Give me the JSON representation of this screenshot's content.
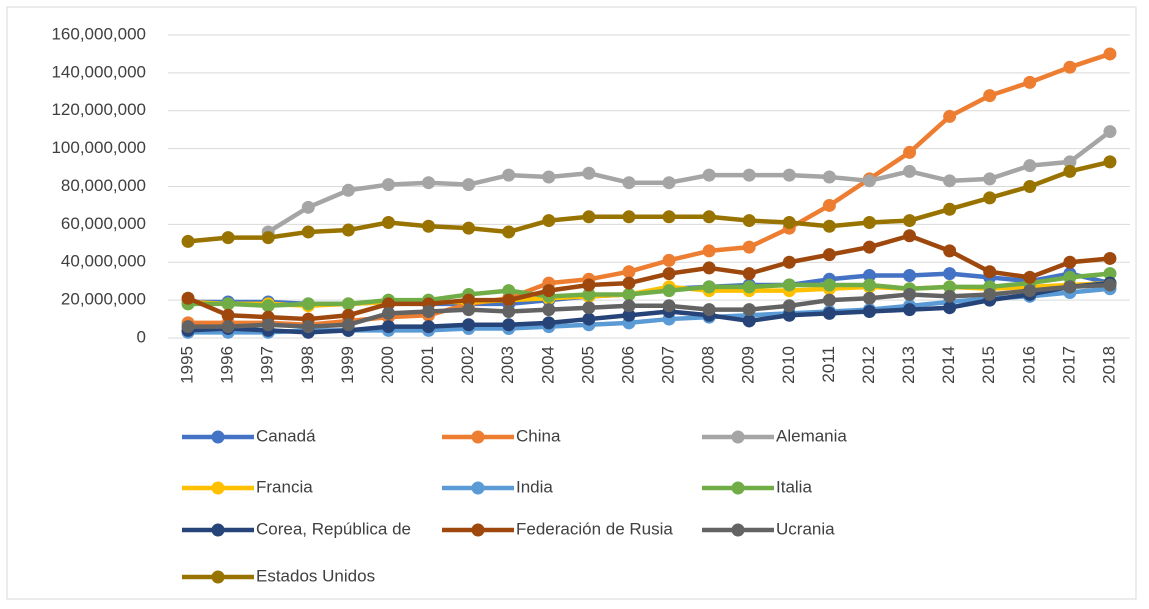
{
  "chart_data": {
    "type": "line",
    "categories": [
      "1995",
      "1996",
      "1997",
      "1998",
      "1999",
      "2000",
      "2001",
      "2002",
      "2003",
      "2004",
      "2005",
      "2006",
      "2007",
      "2008",
      "2009",
      "2010",
      "2011",
      "2012",
      "2013",
      "2014",
      "2015",
      "2016",
      "2017",
      "2018"
    ],
    "ylim": [
      0,
      160000000
    ],
    "yticks": [
      0,
      {
        "value": 20000000,
        "label": "20,000,000"
      },
      {
        "value": 40000000,
        "label": "40,000,000"
      },
      {
        "value": 60000000,
        "label": "60,000,000"
      },
      {
        "value": 80000000,
        "label": "80,000,000"
      },
      {
        "value": 100000000,
        "label": "100,000,000"
      },
      {
        "value": 120000000,
        "label": "120,000,000"
      },
      {
        "value": 140000000,
        "label": "140,000,000"
      },
      {
        "value": 160000000,
        "label": "160,000,000"
      }
    ],
    "grid": true,
    "legend": "bottom",
    "series": [
      {
        "name": "Canadá",
        "color": "#4472c4",
        "values": [
          19000000,
          19000000,
          19000000,
          18000000,
          18000000,
          19000000,
          18000000,
          18000000,
          18000000,
          20000000,
          22000000,
          23000000,
          26000000,
          27000000,
          28000000,
          28000000,
          31000000,
          33000000,
          33000000,
          34000000,
          32000000,
          30000000,
          34000000,
          29000000
        ]
      },
      {
        "name": "China",
        "color": "#ed7d31",
        "values": [
          8000000,
          8000000,
          8000000,
          7000000,
          9000000,
          11000000,
          12000000,
          18000000,
          21000000,
          29000000,
          31000000,
          35000000,
          41000000,
          46000000,
          48000000,
          58000000,
          70000000,
          84000000,
          98000000,
          117000000,
          128000000,
          135000000,
          143000000,
          150000000
        ]
      },
      {
        "name": "Alemania",
        "color": "#a5a5a5",
        "values": [
          null,
          null,
          56000000,
          69000000,
          78000000,
          81000000,
          82000000,
          81000000,
          86000000,
          85000000,
          87000000,
          82000000,
          82000000,
          86000000,
          86000000,
          86000000,
          85000000,
          83000000,
          88000000,
          83000000,
          84000000,
          91000000,
          93000000,
          109000000
        ]
      },
      {
        "name": "Francia",
        "color": "#ffc000",
        "values": [
          19000000,
          18000000,
          18000000,
          17000000,
          18000000,
          19000000,
          19000000,
          19000000,
          20000000,
          21000000,
          22000000,
          23000000,
          27000000,
          25000000,
          25000000,
          25000000,
          26000000,
          27000000,
          26000000,
          27000000,
          26000000,
          27000000,
          28000000,
          29000000
        ]
      },
      {
        "name": "India",
        "color": "#5b9bd5",
        "values": [
          3000000,
          3000000,
          3000000,
          4000000,
          4000000,
          4000000,
          4000000,
          5000000,
          5000000,
          6000000,
          7000000,
          8000000,
          10000000,
          11000000,
          12000000,
          13000000,
          14000000,
          15000000,
          17000000,
          19000000,
          21000000,
          22000000,
          24000000,
          26000000
        ]
      },
      {
        "name": "Italia",
        "color": "#70ad47",
        "values": [
          18000000,
          18000000,
          17000000,
          18000000,
          18000000,
          20000000,
          20000000,
          23000000,
          25000000,
          22000000,
          23000000,
          23000000,
          25000000,
          27000000,
          27000000,
          28000000,
          28000000,
          28000000,
          26000000,
          27000000,
          27000000,
          29000000,
          32000000,
          34000000
        ]
      },
      {
        "name": "Corea, República de",
        "color": "#264478",
        "values": [
          4000000,
          5000000,
          4000000,
          3000000,
          4000000,
          6000000,
          6000000,
          7000000,
          7000000,
          8000000,
          10000000,
          12000000,
          14000000,
          12000000,
          9000000,
          12000000,
          13000000,
          14000000,
          15000000,
          16000000,
          20000000,
          23000000,
          27000000,
          29000000
        ]
      },
      {
        "name": "Federación de Rusia",
        "color": "#9e480e",
        "values": [
          21000000,
          12000000,
          11000000,
          10000000,
          12000000,
          18000000,
          18000000,
          20000000,
          20000000,
          25000000,
          28000000,
          29000000,
          34000000,
          37000000,
          34000000,
          40000000,
          44000000,
          48000000,
          54000000,
          46000000,
          35000000,
          32000000,
          40000000,
          42000000
        ]
      },
      {
        "name": "Ucrania",
        "color": "#636363",
        "values": [
          6000000,
          6000000,
          7000000,
          6000000,
          7000000,
          13000000,
          14000000,
          15000000,
          14000000,
          15000000,
          16000000,
          17000000,
          17000000,
          15000000,
          15000000,
          17000000,
          20000000,
          21000000,
          23000000,
          22000000,
          23000000,
          25000000,
          27000000,
          28000000
        ]
      },
      {
        "name": "Estados Unidos",
        "color": "#997300",
        "values": [
          51000000,
          53000000,
          53000000,
          56000000,
          57000000,
          61000000,
          59000000,
          58000000,
          56000000,
          62000000,
          64000000,
          64000000,
          64000000,
          64000000,
          62000000,
          61000000,
          59000000,
          61000000,
          62000000,
          68000000,
          74000000,
          80000000,
          88000000,
          93000000
        ]
      }
    ]
  }
}
